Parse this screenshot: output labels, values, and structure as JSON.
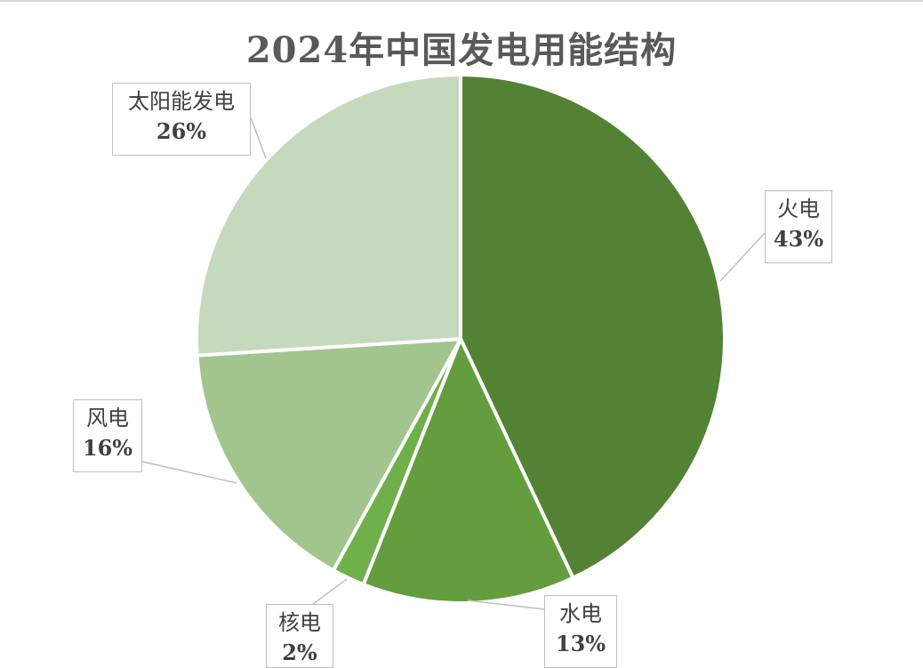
{
  "chart_data": {
    "type": "pie",
    "title": "2024年中国发电用能结构",
    "start_angle_deg": 0,
    "direction": "clockwise",
    "slices": [
      {
        "label": "火电",
        "value": 43,
        "value_label": "43%",
        "color": "#548235"
      },
      {
        "label": "水电",
        "value": 13,
        "value_label": "13%",
        "color": "#639D3D"
      },
      {
        "label": "核电",
        "value": 2,
        "value_label": "2%",
        "color": "#6FB04A"
      },
      {
        "label": "风电",
        "value": 16,
        "value_label": "16%",
        "color": "#A2C58E"
      },
      {
        "label": "太阳能发电",
        "value": 26,
        "value_label": "26%",
        "color": "#C5D9BC"
      }
    ],
    "legend": "none",
    "data_labels": "callouts"
  }
}
